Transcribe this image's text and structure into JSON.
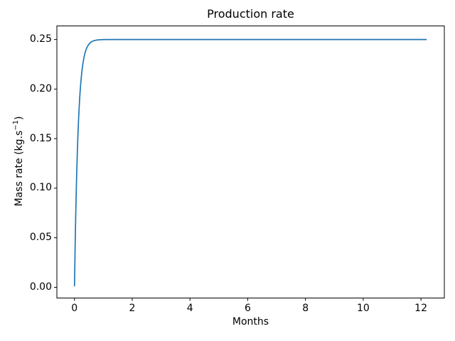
{
  "figure": {
    "title": "Production rate",
    "xlabel": "Months",
    "ylabel_pre": "Mass rate (kg.s",
    "ylabel_sup": "−1",
    "ylabel_post": ")"
  },
  "chart_data": {
    "type": "line",
    "title": "Production rate",
    "xlabel": "Months",
    "ylabel": "Mass rate (kg.s⁻¹)",
    "grid": false,
    "legend": "none",
    "xlim": [
      -0.61,
      12.81
    ],
    "ylim": [
      -0.0108,
      0.2637
    ],
    "x_ticks": [
      0,
      2,
      4,
      6,
      8,
      10,
      12
    ],
    "x_tick_labels": [
      "0",
      "2",
      "4",
      "6",
      "8",
      "10",
      "12"
    ],
    "y_ticks": [
      0,
      0.05,
      0.1,
      0.15,
      0.2,
      0.25
    ],
    "y_tick_labels": [
      "0.00",
      "0.05",
      "0.10",
      "0.15",
      "0.20",
      "0.25"
    ],
    "colors": {
      "line": "#1f77b4",
      "background": "#ffffff",
      "spines": "#000000",
      "text": "#000000"
    },
    "series": [
      {
        "name": "mass-rate-curve",
        "plateau_value": 0.25,
        "x_end": 12.2,
        "points": [
          [
            0,
            0.001
          ],
          [
            0.01,
            0.0192
          ],
          [
            0.02,
            0.037
          ],
          [
            0.03,
            0.0533
          ],
          [
            0.04,
            0.0685
          ],
          [
            0.05,
            0.0824
          ],
          [
            0.06,
            0.0953
          ],
          [
            0.07,
            0.1072
          ],
          [
            0.08,
            0.1182
          ],
          [
            0.09,
            0.1283
          ],
          [
            0.1,
            0.1377
          ],
          [
            0.12,
            0.1543
          ],
          [
            0.14,
            0.1684
          ],
          [
            0.16,
            0.1805
          ],
          [
            0.18,
            0.1908
          ],
          [
            0.2,
            0.1995
          ],
          [
            0.23,
            0.2103
          ],
          [
            0.26,
            0.2188
          ],
          [
            0.3,
            0.2273
          ],
          [
            0.34,
            0.2335
          ],
          [
            0.38,
            0.238
          ],
          [
            0.43,
            0.242
          ],
          [
            0.5,
            0.2454
          ],
          [
            0.58,
            0.2476
          ],
          [
            0.68,
            0.2489
          ],
          [
            0.8,
            0.2496
          ],
          [
            0.95,
            0.2499
          ],
          [
            1.15,
            0.25
          ],
          [
            1.4,
            0.25
          ],
          [
            2,
            0.25
          ],
          [
            3,
            0.25
          ],
          [
            4,
            0.25
          ],
          [
            5,
            0.25
          ],
          [
            6,
            0.25
          ],
          [
            7,
            0.25
          ],
          [
            8,
            0.25
          ],
          [
            9,
            0.25
          ],
          [
            10,
            0.25
          ],
          [
            11,
            0.25
          ],
          [
            12,
            0.25
          ],
          [
            12.2,
            0.25
          ]
        ]
      }
    ]
  }
}
